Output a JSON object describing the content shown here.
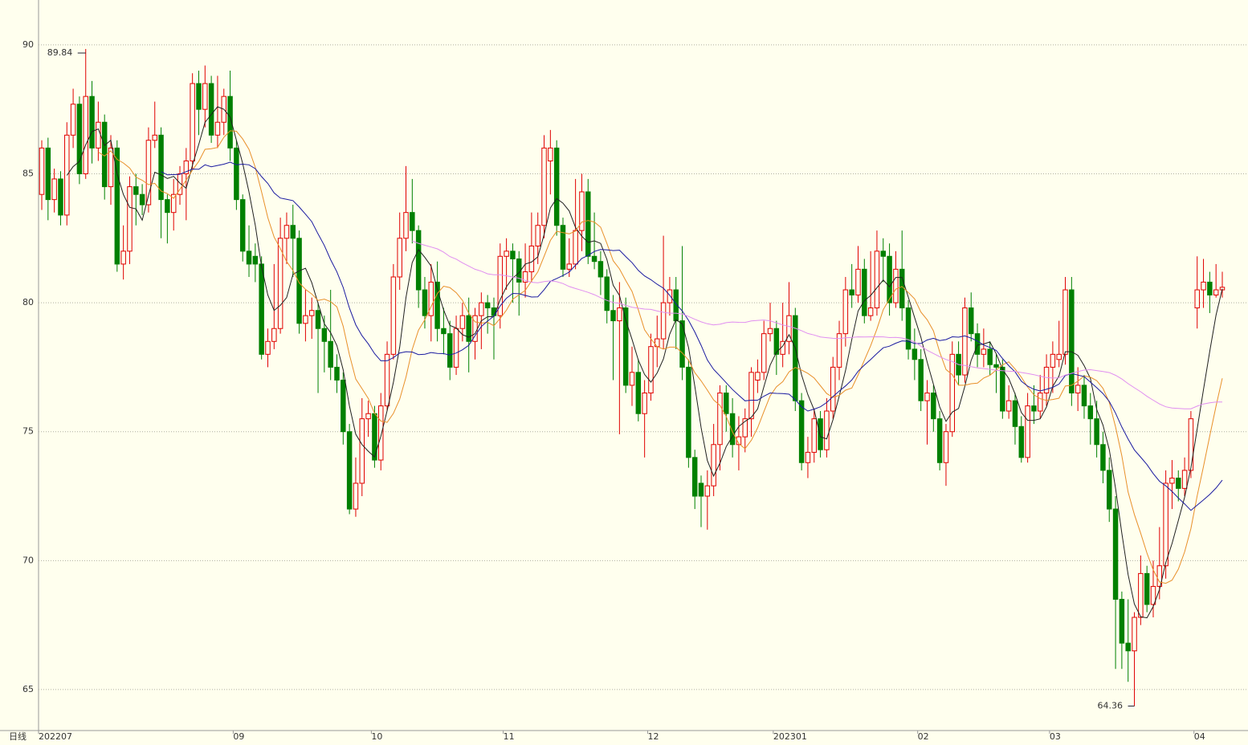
{
  "chart_data": {
    "type": "candlestick",
    "period_label": "日线",
    "categories": [
      "202207",
      null,
      null,
      null,
      null,
      null,
      null,
      null,
      null,
      null,
      null,
      null,
      null,
      null,
      null,
      null,
      null,
      null,
      null,
      null,
      null,
      null,
      null,
      null,
      null,
      null,
      null,
      null,
      null,
      null,
      null,
      "09",
      null,
      null,
      null,
      null,
      null,
      null,
      null,
      null,
      null,
      null,
      null,
      null,
      null,
      null,
      null,
      null,
      null,
      null,
      null,
      null,
      null,
      "10",
      null,
      null,
      null,
      null,
      null,
      null,
      null,
      null,
      null,
      null,
      null,
      null,
      null,
      null,
      null,
      null,
      null,
      null,
      null,
      null,
      "11",
      null,
      null,
      null,
      null,
      null,
      null,
      null,
      null,
      null,
      null,
      null,
      null,
      null,
      null,
      null,
      null,
      null,
      null,
      null,
      null,
      null,
      null,
      "12",
      null,
      null,
      null,
      null,
      null,
      null,
      null,
      null,
      null,
      null,
      null,
      null,
      null,
      null,
      null,
      null,
      null,
      null,
      null,
      "202301",
      null,
      null,
      null,
      null,
      null,
      null,
      null,
      null,
      null,
      null,
      null,
      null,
      null,
      null,
      null,
      null,
      null,
      null,
      null,
      null,
      null,
      null,
      "02",
      null,
      null,
      null,
      null,
      null,
      null,
      null,
      null,
      null,
      null,
      null,
      null,
      null,
      null,
      null,
      null,
      null,
      null,
      null,
      null,
      "03",
      null,
      null,
      null,
      null,
      null,
      null,
      null,
      null,
      null,
      null,
      null,
      null,
      null,
      null,
      null,
      null,
      null,
      null,
      null,
      null,
      null,
      null,
      "04",
      null,
      null,
      null,
      null
    ],
    "open": [
      84.2,
      86.0,
      84.0,
      84.8,
      83.4,
      86.5,
      87.7,
      85.0,
      88.0,
      86.0,
      87.0,
      84.5,
      86.0,
      81.5,
      82.0,
      84.5,
      84.2,
      83.8,
      86.3,
      86.5,
      84.0,
      83.5,
      84.2,
      85.0,
      85.5,
      88.5,
      87.5,
      88.5,
      86.5,
      87.0,
      88.0,
      86.0,
      84.0,
      82.0,
      81.8,
      81.5,
      78.0,
      78.5,
      79.0,
      82.5,
      83.0,
      82.5,
      79.2,
      79.5,
      79.7,
      79.0,
      78.5,
      77.5,
      77.0,
      75.0,
      72.0,
      73.0,
      75.5,
      75.7,
      73.9,
      76.0,
      78.0,
      81.0,
      82.5,
      83.5,
      82.8,
      80.5,
      79.5,
      80.8,
      79.0,
      78.8,
      77.5,
      79.0,
      79.5,
      78.5,
      79.5,
      80.0,
      79.8,
      79.5,
      81.8,
      82.0,
      81.7,
      80.8,
      81.2,
      82.2,
      83.0,
      85.5,
      86.0,
      83.0,
      81.3,
      81.5,
      82.8,
      84.3,
      81.8,
      81.6,
      81.0,
      79.7,
      79.3,
      79.8,
      76.8,
      77.3,
      75.7,
      76.5,
      78.3,
      78.6,
      80.0,
      80.5,
      79.3,
      77.5,
      74.0,
      73.0,
      72.5,
      72.9,
      74.5,
      76.5,
      75.7,
      74.5,
      74.8,
      75.5,
      77.0,
      77.3,
      78.8,
      79.0,
      78.0,
      78.5,
      79.5,
      76.2,
      73.8,
      74.2,
      75.5,
      74.3,
      75.8,
      77.5,
      78.8,
      80.5,
      80.3,
      81.3,
      79.5,
      79.8,
      82.0,
      81.8,
      80.0,
      81.3,
      79.8,
      78.2,
      77.8,
      76.2,
      76.5,
      75.5,
      73.8,
      75.0,
      78.0,
      77.2,
      79.8,
      78.8,
      78.0,
      78.2,
      77.6,
      77.5,
      75.8,
      76.2,
      75.2,
      74.0,
      76.0,
      75.8,
      76.5,
      77.5,
      77.8,
      78.0,
      80.5,
      76.5,
      76.8,
      76.0,
      75.5,
      74.5,
      73.5,
      72.0,
      68.5,
      66.8,
      66.5,
      67.8,
      69.5,
      68.3,
      69.0,
      69.8,
      73.0,
      73.2,
      72.8,
      73.5,
      79.8,
      80.5,
      80.8,
      80.3,
      80.5
    ],
    "high": [
      86.3,
      86.4,
      85.2,
      85.1,
      87.0,
      88.3,
      88.0,
      89.84,
      88.6,
      87.8,
      87.3,
      86.5,
      86.3,
      83.0,
      84.9,
      85.0,
      84.6,
      86.8,
      87.8,
      86.8,
      84.2,
      84.8,
      85.3,
      86.0,
      88.9,
      89.0,
      89.2,
      88.8,
      88.8,
      88.3,
      89.0,
      86.3,
      84.2,
      83.0,
      82.3,
      81.8,
      79.0,
      81.5,
      83.3,
      83.5,
      83.8,
      82.8,
      80.5,
      80.2,
      80.0,
      79.5,
      80.5,
      78.0,
      77.3,
      75.3,
      74.0,
      76.3,
      76.2,
      76.0,
      76.5,
      78.5,
      81.5,
      83.5,
      85.3,
      84.8,
      83.0,
      81.0,
      81.5,
      81.6,
      79.8,
      79.3,
      79.5,
      80.0,
      80.2,
      79.8,
      80.4,
      80.3,
      80.2,
      82.3,
      82.5,
      82.3,
      82.0,
      82.3,
      83.5,
      83.5,
      86.5,
      86.7,
      86.3,
      83.3,
      82.5,
      84.8,
      85.0,
      84.8,
      83.5,
      82.0,
      81.3,
      80.3,
      80.8,
      80.2,
      78.3,
      77.8,
      77.0,
      78.8,
      79.5,
      82.6,
      81.0,
      81.0,
      82.2,
      77.8,
      74.3,
      73.3,
      73.5,
      75.3,
      76.8,
      76.8,
      76.3,
      75.6,
      75.9,
      77.5,
      77.8,
      79.3,
      80.0,
      79.3,
      80.0,
      80.8,
      79.8,
      76.5,
      74.8,
      75.9,
      75.8,
      76.3,
      77.9,
      79.3,
      81.0,
      81.5,
      82.2,
      81.7,
      82.0,
      82.8,
      82.5,
      82.3,
      82.0,
      82.8,
      80.1,
      79.0,
      78.2,
      77.0,
      76.8,
      75.8,
      75.3,
      78.5,
      78.5,
      80.2,
      80.4,
      79.2,
      79.0,
      78.5,
      78.0,
      77.8,
      76.8,
      76.5,
      75.6,
      76.5,
      76.8,
      77.2,
      78.0,
      78.5,
      79.3,
      81.0,
      81.0,
      77.5,
      77.2,
      76.5,
      76.2,
      75.0,
      74.0,
      72.5,
      68.8,
      68.5,
      68.0,
      70.2,
      69.8,
      70.0,
      71.3,
      73.5,
      73.9,
      73.5,
      74.0,
      75.8,
      81.8,
      81.7,
      81.2,
      81.5,
      81.2
    ],
    "low": [
      83.6,
      83.2,
      83.5,
      83.0,
      83.0,
      86.0,
      84.6,
      84.8,
      85.4,
      85.5,
      84.0,
      83.8,
      81.2,
      80.9,
      81.5,
      83.0,
      83.4,
      83.5,
      86.0,
      82.5,
      82.3,
      82.8,
      83.8,
      83.2,
      85.2,
      86.5,
      86.8,
      86.2,
      86.0,
      86.5,
      85.5,
      83.6,
      81.6,
      81.0,
      80.8,
      77.8,
      77.5,
      78.2,
      78.8,
      81.5,
      81.0,
      78.8,
      78.5,
      78.6,
      76.5,
      77.3,
      77.0,
      76.5,
      74.5,
      71.8,
      71.7,
      72.5,
      74.8,
      73.6,
      73.5,
      75.8,
      77.8,
      80.5,
      82.0,
      82.3,
      79.8,
      79.0,
      78.5,
      78.5,
      78.0,
      77.0,
      77.2,
      78.5,
      77.3,
      77.8,
      78.2,
      78.8,
      77.8,
      79.0,
      80.5,
      80.0,
      79.5,
      80.2,
      80.8,
      81.5,
      82.5,
      84.2,
      82.6,
      81.0,
      81.0,
      81.3,
      82.0,
      81.5,
      81.3,
      80.3,
      79.2,
      77.0,
      74.9,
      76.5,
      76.0,
      75.4,
      74.0,
      76.2,
      77.5,
      78.2,
      79.5,
      78.2,
      77.0,
      73.6,
      72.0,
      71.3,
      71.2,
      72.5,
      73.5,
      75.0,
      74.0,
      73.5,
      74.2,
      74.8,
      76.5,
      77.0,
      78.5,
      77.2,
      77.5,
      78.0,
      75.8,
      73.5,
      73.2,
      73.8,
      74.0,
      74.0,
      75.5,
      77.0,
      78.3,
      79.8,
      80.0,
      79.2,
      79.3,
      79.5,
      80.8,
      79.5,
      79.8,
      79.3,
      77.8,
      77.0,
      75.8,
      74.5,
      75.0,
      73.5,
      72.9,
      74.8,
      76.8,
      76.9,
      78.5,
      77.5,
      77.5,
      77.2,
      76.5,
      75.5,
      75.5,
      74.5,
      73.8,
      73.8,
      75.3,
      75.5,
      76.0,
      76.5,
      77.5,
      77.6,
      76.0,
      75.8,
      75.5,
      74.5,
      74.0,
      73.0,
      71.5,
      65.8,
      65.8,
      65.3,
      64.36,
      67.5,
      68.0,
      67.8,
      68.5,
      69.3,
      72.0,
      72.3,
      72.5,
      73.2,
      79.0,
      79.8,
      79.6,
      80.2,
      80.2
    ],
    "close": [
      86.0,
      84.0,
      84.8,
      83.4,
      86.5,
      87.7,
      85.0,
      88.0,
      86.0,
      87.0,
      84.5,
      86.0,
      81.5,
      82.0,
      84.5,
      84.2,
      83.8,
      86.3,
      86.5,
      84.0,
      83.5,
      84.2,
      85.0,
      85.5,
      88.5,
      87.5,
      88.5,
      86.5,
      87.0,
      88.0,
      86.0,
      84.0,
      82.0,
      81.5,
      81.5,
      78.0,
      78.5,
      79.0,
      82.5,
      83.0,
      82.5,
      79.2,
      79.5,
      79.7,
      79.0,
      78.5,
      77.5,
      77.0,
      75.0,
      72.0,
      73.0,
      75.5,
      75.7,
      73.9,
      76.0,
      78.0,
      81.0,
      82.5,
      83.5,
      82.8,
      80.5,
      79.5,
      80.8,
      79.0,
      78.8,
      77.5,
      79.0,
      79.5,
      78.5,
      79.5,
      80.0,
      79.8,
      79.5,
      81.8,
      82.0,
      81.7,
      80.8,
      81.2,
      82.2,
      83.0,
      86.0,
      86.0,
      83.0,
      81.3,
      81.5,
      82.8,
      84.3,
      81.8,
      81.6,
      81.0,
      79.7,
      79.3,
      79.8,
      76.8,
      77.3,
      75.7,
      76.5,
      78.3,
      78.6,
      80.0,
      80.5,
      79.3,
      77.5,
      74.0,
      72.5,
      72.5,
      72.9,
      74.5,
      76.5,
      75.7,
      74.5,
      74.8,
      75.5,
      77.3,
      77.3,
      78.8,
      79.0,
      78.0,
      78.5,
      79.5,
      76.2,
      73.8,
      74.2,
      75.5,
      74.3,
      75.8,
      77.5,
      78.8,
      80.5,
      80.3,
      81.3,
      79.5,
      79.8,
      82.0,
      81.8,
      80.0,
      81.3,
      79.8,
      78.2,
      77.8,
      76.2,
      76.5,
      75.5,
      73.8,
      75.0,
      78.0,
      77.2,
      79.8,
      78.8,
      78.0,
      78.2,
      77.6,
      77.5,
      75.8,
      76.2,
      75.2,
      74.0,
      76.0,
      75.8,
      76.5,
      77.5,
      78.0,
      78.0,
      80.5,
      76.5,
      76.8,
      76.0,
      75.5,
      74.5,
      73.5,
      72.0,
      68.5,
      66.8,
      66.5,
      67.8,
      69.5,
      68.3,
      69.0,
      69.8,
      73.0,
      73.2,
      72.8,
      73.5,
      75.5,
      80.5,
      80.8,
      80.3,
      80.5,
      80.6
    ],
    "up_color": "#e00000",
    "down_color": "#008000",
    "moving_averages": [
      {
        "period": 5,
        "color": "#202020"
      },
      {
        "period": 10,
        "color": "#e8902a"
      },
      {
        "period": 20,
        "color": "#1a1aa0"
      },
      {
        "period": 60,
        "color": "#e08ef0"
      }
    ],
    "ylim": [
      63.41,
      91.74
    ],
    "yticks": [
      65,
      70,
      75,
      80,
      85,
      90
    ],
    "grid": true,
    "annotations": [
      {
        "path": "high",
        "index": 7
      },
      {
        "path": "low",
        "index": 174
      }
    ]
  }
}
